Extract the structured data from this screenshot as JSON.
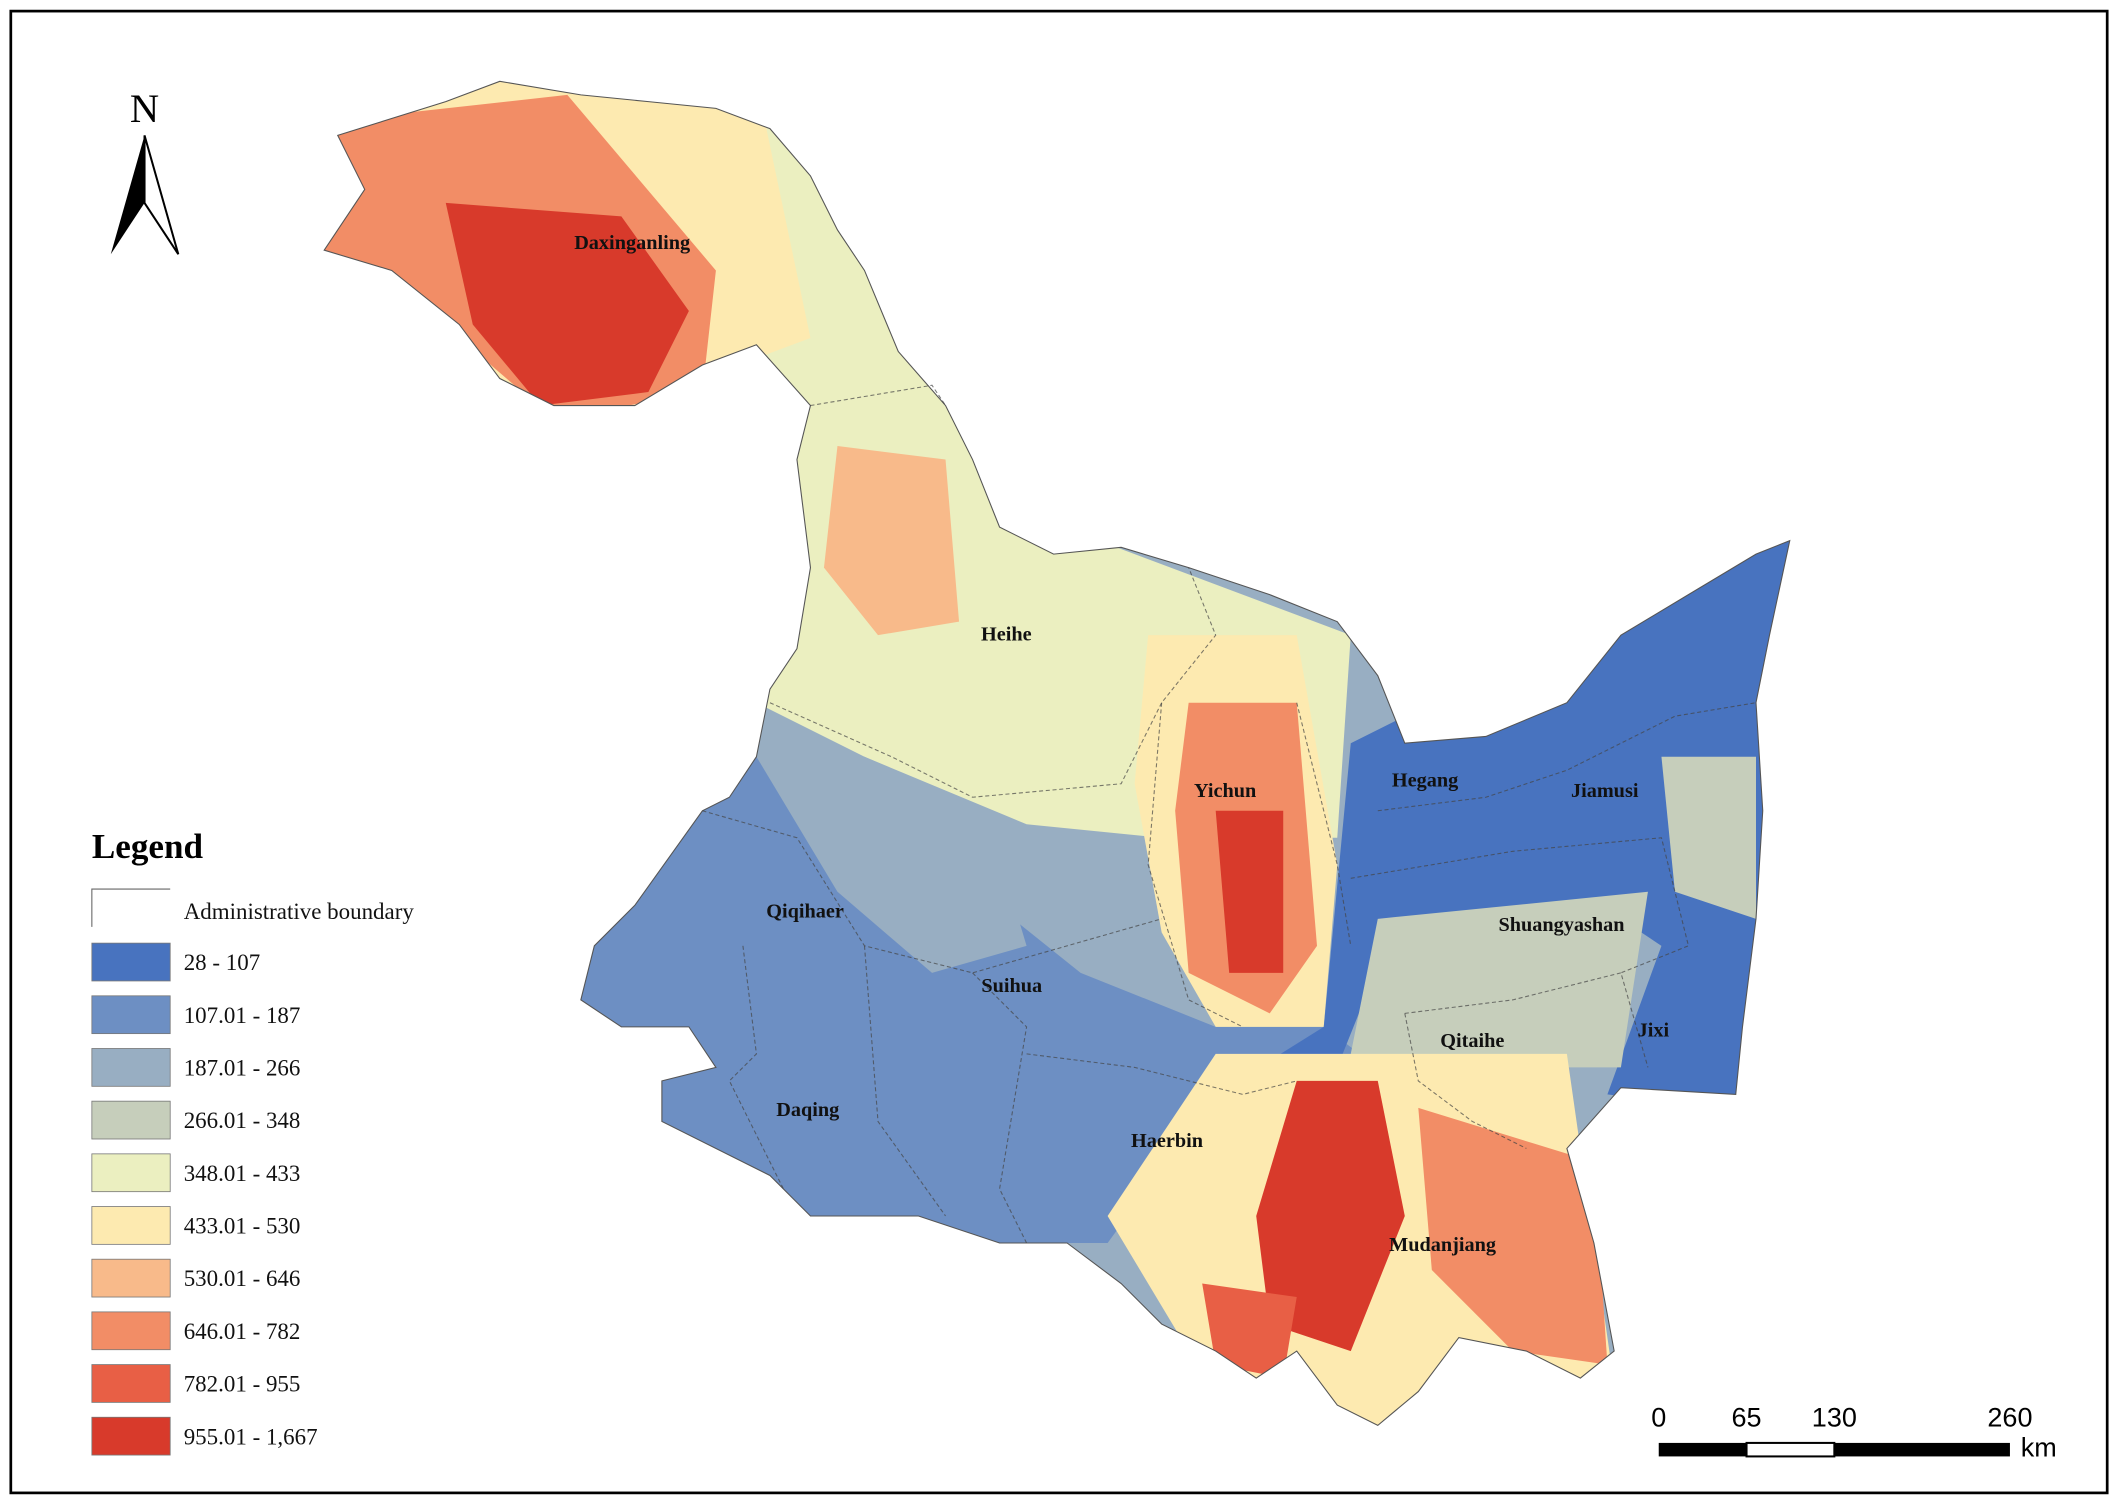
{
  "map": {
    "north_label": "N",
    "places": [
      {
        "name": "Daxinganling"
      },
      {
        "name": "Heihe"
      },
      {
        "name": "Yichun"
      },
      {
        "name": "Hegang"
      },
      {
        "name": "Jiamusi"
      },
      {
        "name": "Qiqihaer"
      },
      {
        "name": "Shuangyashan"
      },
      {
        "name": "Suihua"
      },
      {
        "name": "Qitaihe"
      },
      {
        "name": "Jixi"
      },
      {
        "name": "Daqing"
      },
      {
        "name": "Haerbin"
      },
      {
        "name": "Mudanjiang"
      }
    ],
    "legend": {
      "title": "Legend",
      "boundary_label": "Administrative boundary",
      "items": [
        {
          "label": "28 - 107",
          "color": "#4873bf"
        },
        {
          "label": "107.01 - 187",
          "color": "#6d8fc3"
        },
        {
          "label": "187.01 - 266",
          "color": "#98aec2"
        },
        {
          "label": "266.01 - 348",
          "color": "#c6cebb"
        },
        {
          "label": "348.01 - 433",
          "color": "#ebefc0"
        },
        {
          "label": "433.01 - 530",
          "color": "#fdeab0"
        },
        {
          "label": "530.01 - 646",
          "color": "#f8ba8a"
        },
        {
          "label": "646.01 - 782",
          "color": "#f28d66"
        },
        {
          "label": "782.01 - 955",
          "color": "#e85f45"
        },
        {
          "label": "955.01 - 1,667",
          "color": "#d83a2b"
        }
      ]
    },
    "scale_bar": {
      "labels": [
        "0",
        "65",
        "130",
        "260"
      ],
      "unit": "km"
    }
  }
}
